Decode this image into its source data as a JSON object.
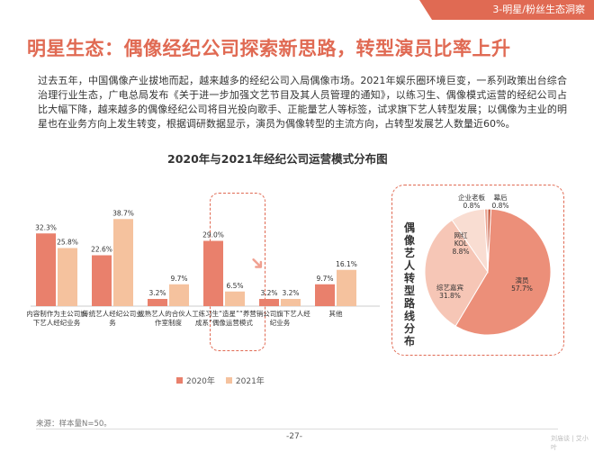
{
  "header": {
    "section_tag": "3-明星/粉丝生态洞察"
  },
  "page": {
    "title": "明星生态：偶像经纪公司探索新思路，转型演员比率上升",
    "paragraph": "过去五年，中国偶像产业拔地而起，越来越多的经纪公司入局偶像市场。2021年娱乐圈环境巨变，一系列政策出台综合治理行业生态，广电总局发布《关于进一步加强文艺节目及其人员管理的通知》，以练习生、偶像模式运营的经纪公司占比大幅下降，越来越多的偶像经纪公司将目光投向歌手、正能量艺人等标签，试求旗下艺人转型发展；以偶像为主业的明星也在业务方向上发生转变，根据调研数据显示，演员为偶像转型的主流方向，占转型发展艺人数量近60%。",
    "source": "来源：样本量N=50。",
    "page_number": "-27-",
    "watermark": "刘庙谈 | 艾小叶"
  },
  "colors": {
    "accent": "#e06a53",
    "series_2020": "#e9806c",
    "series_2021": "#f5c29e",
    "pie_actor": "#ec8f79",
    "pie_variety": "#f6c6b6",
    "pie_internet": "#f9ddd2",
    "pie_boss": "#eba28f",
    "pie_behind": "#c55a3f"
  },
  "chart_data": [
    {
      "type": "bar",
      "title": "2020年与2021年经纪公司运营模式分布图",
      "categories": [
        "内容制作为主公司旗下艺人经纪业务",
        "传统艺人经纪公司业务",
        "成熟艺人的合伙人工作室制度",
        "练习生“造星”“养成系”偶像运营模式",
        "营销公司旗下艺人经纪业务",
        "其他"
      ],
      "series": [
        {
          "name": "2020年",
          "values": [
            32.3,
            22.6,
            3.2,
            29.0,
            3.2,
            9.7
          ],
          "labels": [
            "32.3%",
            "22.6%",
            "3.2%",
            "29.0%",
            "3.2%",
            "9.7%"
          ]
        },
        {
          "name": "2021年",
          "values": [
            25.8,
            38.7,
            9.7,
            6.5,
            3.2,
            16.1
          ],
          "labels": [
            "25.8%",
            "38.7%",
            "9.7%",
            "6.5%",
            "3.2%",
            "16.1%"
          ]
        }
      ],
      "ylim": [
        0,
        40
      ],
      "grid": false,
      "legend": "bottom"
    },
    {
      "type": "pie",
      "title": "偶像艺人转型路线分布",
      "slices": [
        {
          "label": "演员",
          "value": 57.7,
          "text": "57.7%"
        },
        {
          "label": "综艺嘉宾",
          "value": 31.8,
          "text": "31.8%"
        },
        {
          "label": "网红KOL",
          "value": 8.8,
          "text": "8.8%"
        },
        {
          "label": "企业老板",
          "value": 0.8,
          "text": "0.8%"
        },
        {
          "label": "幕后",
          "value": 0.8,
          "text": "0.8%"
        }
      ]
    }
  ]
}
